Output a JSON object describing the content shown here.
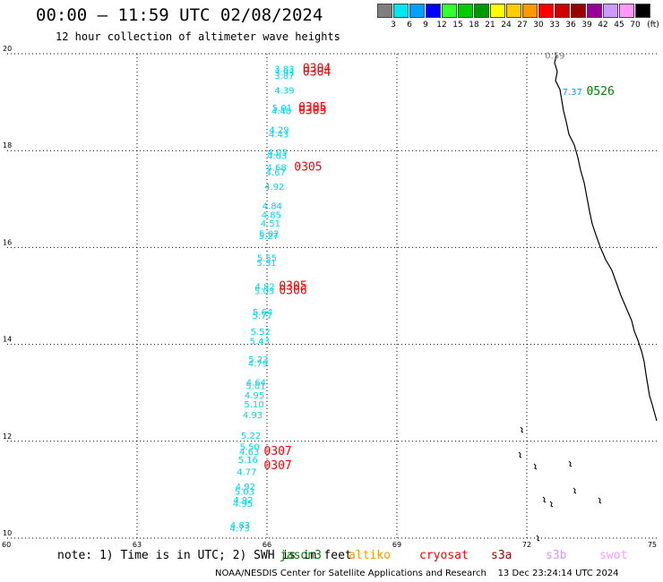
{
  "header": {
    "title": "00:00 – 11:59 UTC 02/08/2024",
    "subtitle": "12 hour collection of altimeter wave heights"
  },
  "legend": {
    "unit": "(ft)",
    "bins": [
      {
        "label": "3",
        "color": "#7f7f7f"
      },
      {
        "label": "6",
        "color": "#00e5ee"
      },
      {
        "label": "9",
        "color": "#00a0ff"
      },
      {
        "label": "12",
        "color": "#0000ff"
      },
      {
        "label": "15",
        "color": "#33ff33"
      },
      {
        "label": "18",
        "color": "#00cc00"
      },
      {
        "label": "21",
        "color": "#009900"
      },
      {
        "label": "24",
        "color": "#ffff00"
      },
      {
        "label": "27",
        "color": "#ffcc00"
      },
      {
        "label": "30",
        "color": "#ff9900"
      },
      {
        "label": "33",
        "color": "#ff0000"
      },
      {
        "label": "36",
        "color": "#cc0000"
      },
      {
        "label": "39",
        "color": "#990000"
      },
      {
        "label": "42",
        "color": "#990099"
      },
      {
        "label": "45",
        "color": "#cc99ff"
      },
      {
        "label": "70",
        "color": "#ff99ff"
      },
      {
        "label": "",
        "color": "#000000"
      }
    ]
  },
  "map": {
    "x_axis": {
      "min": 60,
      "max": 75,
      "ticks": [
        "60",
        "63",
        "66",
        "69",
        "72",
        "75"
      ]
    },
    "y_axis": {
      "min": 10,
      "max": 20,
      "ticks": [
        "10",
        "12",
        "14",
        "16",
        "18",
        "20"
      ]
    },
    "swh_values": [
      {
        "v": "3.83",
        "x": 66.4,
        "y": 19.62
      },
      {
        "v": "3.93",
        "x": 66.4,
        "y": 19.55
      },
      {
        "v": "3.87",
        "x": 66.4,
        "y": 19.48
      },
      {
        "v": "4.39",
        "x": 66.4,
        "y": 19.18
      },
      {
        "v": "5.01",
        "x": 66.35,
        "y": 18.82
      },
      {
        "v": "4.40",
        "x": 66.33,
        "y": 18.75
      },
      {
        "v": "4.29",
        "x": 66.28,
        "y": 18.36
      },
      {
        "v": "4.43",
        "x": 66.27,
        "y": 18.27
      },
      {
        "v": "4.03",
        "x": 66.24,
        "y": 17.9
      },
      {
        "v": "4.63",
        "x": 66.23,
        "y": 17.83
      },
      {
        "v": "4.68",
        "x": 66.22,
        "y": 17.59
      },
      {
        "v": "4.67",
        "x": 66.2,
        "y": 17.49
      },
      {
        "v": "4.92",
        "x": 66.17,
        "y": 17.19
      },
      {
        "v": "4.84",
        "x": 66.12,
        "y": 16.79
      },
      {
        "v": "4.85",
        "x": 66.1,
        "y": 16.61
      },
      {
        "v": "4.51",
        "x": 66.08,
        "y": 16.43
      },
      {
        "v": "5.02",
        "x": 66.05,
        "y": 16.22
      },
      {
        "v": "5.27",
        "x": 66.04,
        "y": 16.17
      },
      {
        "v": "5.55",
        "x": 66.0,
        "y": 15.72
      },
      {
        "v": "5.31",
        "x": 65.99,
        "y": 15.62
      },
      {
        "v": "4.82",
        "x": 65.95,
        "y": 15.13
      },
      {
        "v": "5.03",
        "x": 65.94,
        "y": 15.04
      },
      {
        "v": "5.64",
        "x": 65.9,
        "y": 14.6
      },
      {
        "v": "5.77",
        "x": 65.89,
        "y": 14.53
      },
      {
        "v": "5.52",
        "x": 65.85,
        "y": 14.2
      },
      {
        "v": "5.43",
        "x": 65.83,
        "y": 14.0
      },
      {
        "v": "5.23",
        "x": 65.8,
        "y": 13.62
      },
      {
        "v": "4.79",
        "x": 65.79,
        "y": 13.54
      },
      {
        "v": "4.64",
        "x": 65.75,
        "y": 13.15
      },
      {
        "v": "5.01",
        "x": 65.74,
        "y": 13.08
      },
      {
        "v": "4.95",
        "x": 65.71,
        "y": 12.88
      },
      {
        "v": "5.10",
        "x": 65.7,
        "y": 12.7
      },
      {
        "v": "4.93",
        "x": 65.67,
        "y": 12.48
      },
      {
        "v": "5.22",
        "x": 65.63,
        "y": 12.05
      },
      {
        "v": "5.50",
        "x": 65.6,
        "y": 11.82
      },
      {
        "v": "4.63",
        "x": 65.59,
        "y": 11.72
      },
      {
        "v": "5.16",
        "x": 65.56,
        "y": 11.55
      },
      {
        "v": "4.77",
        "x": 65.53,
        "y": 11.3
      },
      {
        "v": "4.92",
        "x": 65.5,
        "y": 11.0
      },
      {
        "v": "5.03",
        "x": 65.48,
        "y": 10.9
      },
      {
        "v": "4.92",
        "x": 65.45,
        "y": 10.72
      },
      {
        "v": "4.95",
        "x": 65.44,
        "y": 10.65
      },
      {
        "v": "4.83",
        "x": 65.38,
        "y": 10.2
      },
      {
        "v": "4.73",
        "x": 65.37,
        "y": 10.14
      }
    ],
    "pass_times": [
      {
        "t": "0304",
        "x": 67.15,
        "y": 19.62,
        "color": "#ff0000"
      },
      {
        "t": "0304",
        "x": 67.15,
        "y": 19.55,
        "color": "#ff0000"
      },
      {
        "t": "0305",
        "x": 67.05,
        "y": 18.82,
        "color": "#ff0000"
      },
      {
        "t": "0305",
        "x": 67.05,
        "y": 18.75,
        "color": "#ff0000"
      },
      {
        "t": "0305",
        "x": 66.95,
        "y": 17.59,
        "color": "#ff0000"
      },
      {
        "t": "0305",
        "x": 66.6,
        "y": 15.13,
        "color": "#ff0000"
      },
      {
        "t": "0306",
        "x": 66.6,
        "y": 15.04,
        "color": "#ff0000"
      },
      {
        "t": "0307",
        "x": 66.25,
        "y": 11.72,
        "color": "#ff0000"
      },
      {
        "t": "0307",
        "x": 66.25,
        "y": 11.42,
        "color": "#ff0000"
      },
      {
        "t": "0526",
        "x": 73.7,
        "y": 19.15,
        "color": "#008000"
      }
    ],
    "coast_values": [
      {
        "v": "0.59",
        "x": 72.65,
        "y": 19.9,
        "color": "#7f7f7f"
      },
      {
        "v": "7.37",
        "x": 73.05,
        "y": 19.15,
        "color": "#00a0ff"
      }
    ]
  },
  "footer": {
    "note": "note: 1) Time is in UTC; 2) SWH is in feet",
    "satellites": [
      {
        "name": "jason3",
        "color": "#008000"
      },
      {
        "name": "altiko",
        "color": "#ff9900"
      },
      {
        "name": "cryosat",
        "color": "#ff0000"
      },
      {
        "name": "s3a",
        "color": "#990000"
      },
      {
        "name": "s3b",
        "color": "#cc99ff"
      },
      {
        "name": "swot",
        "color": "#ff99ff"
      }
    ],
    "credit": "NOAA/NESDIS Center for Satellite Applications and Research    13 Dec 23:24:14 UTC 2024"
  }
}
